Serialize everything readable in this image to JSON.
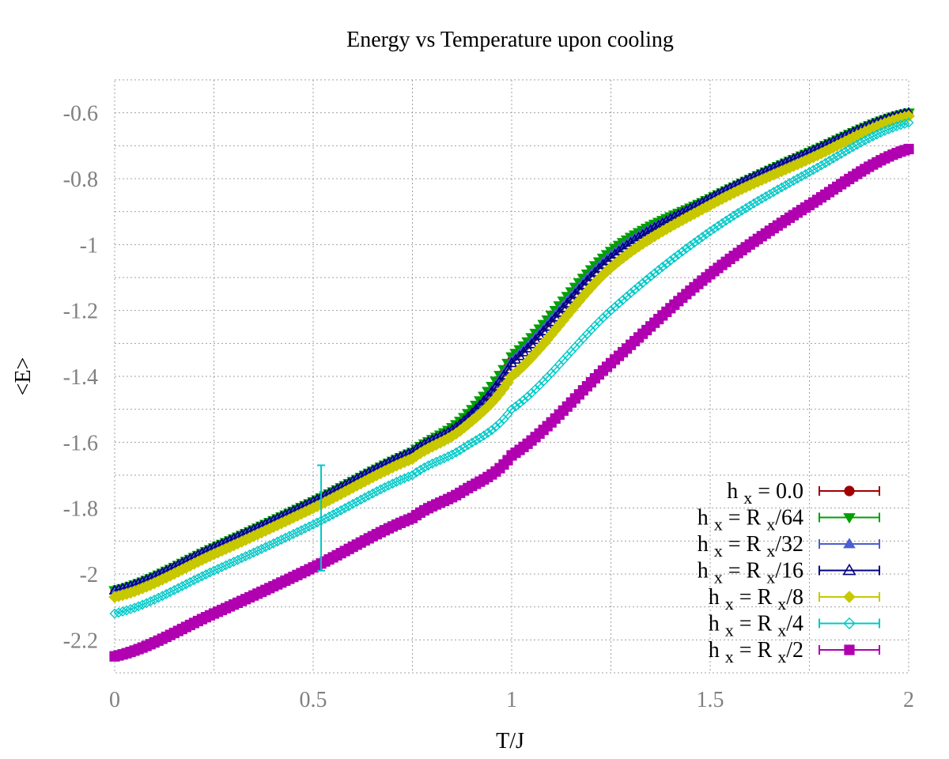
{
  "chart_data": {
    "type": "line",
    "title": "Energy vs Temperature upon cooling",
    "xlabel": "T/J",
    "ylabel": "<E>",
    "xlim": [
      0,
      2
    ],
    "ylim": [
      -2.3,
      -0.5
    ],
    "x_ticks": [
      "0",
      "0.5",
      "1",
      "1.5",
      "2"
    ],
    "y_ticks": [
      "-0.6",
      "-0.8",
      "-1",
      "-1.2",
      "-1.4",
      "-1.6",
      "-1.8",
      "-2",
      "-2.2"
    ],
    "grid": true,
    "legend_position": "bottom-right",
    "series": [
      {
        "name": "h_x = 0.0",
        "legend_label": {
          "h": "h",
          "sub": "x",
          "rest": "= 0.0"
        },
        "color": "#a00000",
        "marker": "circle",
        "x": [
          0,
          0.25,
          0.5,
          0.75,
          0.875,
          1.0,
          1.25,
          1.5,
          1.75,
          2.0
        ],
        "y": [
          -2.05,
          -1.92,
          -1.78,
          -1.63,
          -1.54,
          -1.35,
          -1.03,
          -0.86,
          -0.72,
          -0.6
        ]
      },
      {
        "name": "h_x = R_x/64",
        "legend_label": {
          "h": "h",
          "sub": "x",
          "rest": "= R",
          "sub2": "x",
          "tail": "/64"
        },
        "color": "#00a000",
        "marker": "triangle-down",
        "x": [
          0,
          0.25,
          0.5,
          0.75,
          0.875,
          1.0,
          1.25,
          1.5,
          1.75,
          2.0
        ],
        "y": [
          -2.05,
          -1.92,
          -1.78,
          -1.63,
          -1.53,
          -1.34,
          -1.02,
          -0.86,
          -0.72,
          -0.6
        ]
      },
      {
        "name": "h_x = R_x/32",
        "legend_label": {
          "h": "h",
          "sub": "x",
          "rest": "= R",
          "sub2": "x",
          "tail": "/32"
        },
        "color": "#4a5fd0",
        "marker": "triangle-up",
        "x": [
          0,
          0.25,
          0.5,
          0.75,
          0.875,
          1.0,
          1.25,
          1.5,
          1.75,
          2.0
        ],
        "y": [
          -2.05,
          -1.92,
          -1.78,
          -1.63,
          -1.54,
          -1.35,
          -1.03,
          -0.86,
          -0.72,
          -0.6
        ]
      },
      {
        "name": "h_x = R_x/16",
        "legend_label": {
          "h": "h",
          "sub": "x",
          "rest": "= R",
          "sub2": "x",
          "tail": "/16"
        },
        "color": "#000080",
        "marker": "triangle-up-open",
        "x": [
          0,
          0.25,
          0.5,
          0.75,
          0.875,
          1.0,
          1.25,
          1.5,
          1.75,
          2.0
        ],
        "y": [
          -2.05,
          -1.92,
          -1.78,
          -1.63,
          -1.54,
          -1.36,
          -1.04,
          -0.86,
          -0.72,
          -0.6
        ]
      },
      {
        "name": "h_x = R_x/8",
        "legend_label": {
          "h": "h",
          "sub": "x",
          "rest": "= R",
          "sub2": "x",
          "tail": "/8"
        },
        "color": "#c8c800",
        "marker": "diamond",
        "x": [
          0,
          0.25,
          0.5,
          0.75,
          0.875,
          1.0,
          1.25,
          1.5,
          1.75,
          2.0
        ],
        "y": [
          -2.07,
          -1.94,
          -1.8,
          -1.65,
          -1.56,
          -1.4,
          -1.07,
          -0.88,
          -0.74,
          -0.61
        ]
      },
      {
        "name": "h_x = R_x/4",
        "legend_label": {
          "h": "h",
          "sub": "x",
          "rest": "= R",
          "sub2": "x",
          "tail": "/4"
        },
        "color": "#00c8c8",
        "marker": "diamond-open",
        "x": [
          0,
          0.25,
          0.5,
          0.75,
          0.875,
          1.0,
          1.25,
          1.5,
          1.75,
          2.0
        ],
        "y": [
          -2.12,
          -1.99,
          -1.85,
          -1.7,
          -1.62,
          -1.5,
          -1.2,
          -0.96,
          -0.78,
          -0.63
        ]
      },
      {
        "name": "h_x = R_x/2",
        "legend_label": {
          "h": "h",
          "sub": "x",
          "rest": "= R",
          "sub2": "x",
          "tail": "/2"
        },
        "color": "#b000b0",
        "marker": "square",
        "x": [
          0,
          0.25,
          0.5,
          0.75,
          0.875,
          1.0,
          1.25,
          1.5,
          1.75,
          2.0
        ],
        "y": [
          -2.25,
          -2.12,
          -1.98,
          -1.83,
          -1.75,
          -1.64,
          -1.36,
          -1.09,
          -0.88,
          -0.71
        ]
      }
    ],
    "error_bar": {
      "series": "h_x = R_x/4",
      "x": 0.52,
      "y": -1.83,
      "low": -1.99,
      "high": -1.67
    }
  }
}
